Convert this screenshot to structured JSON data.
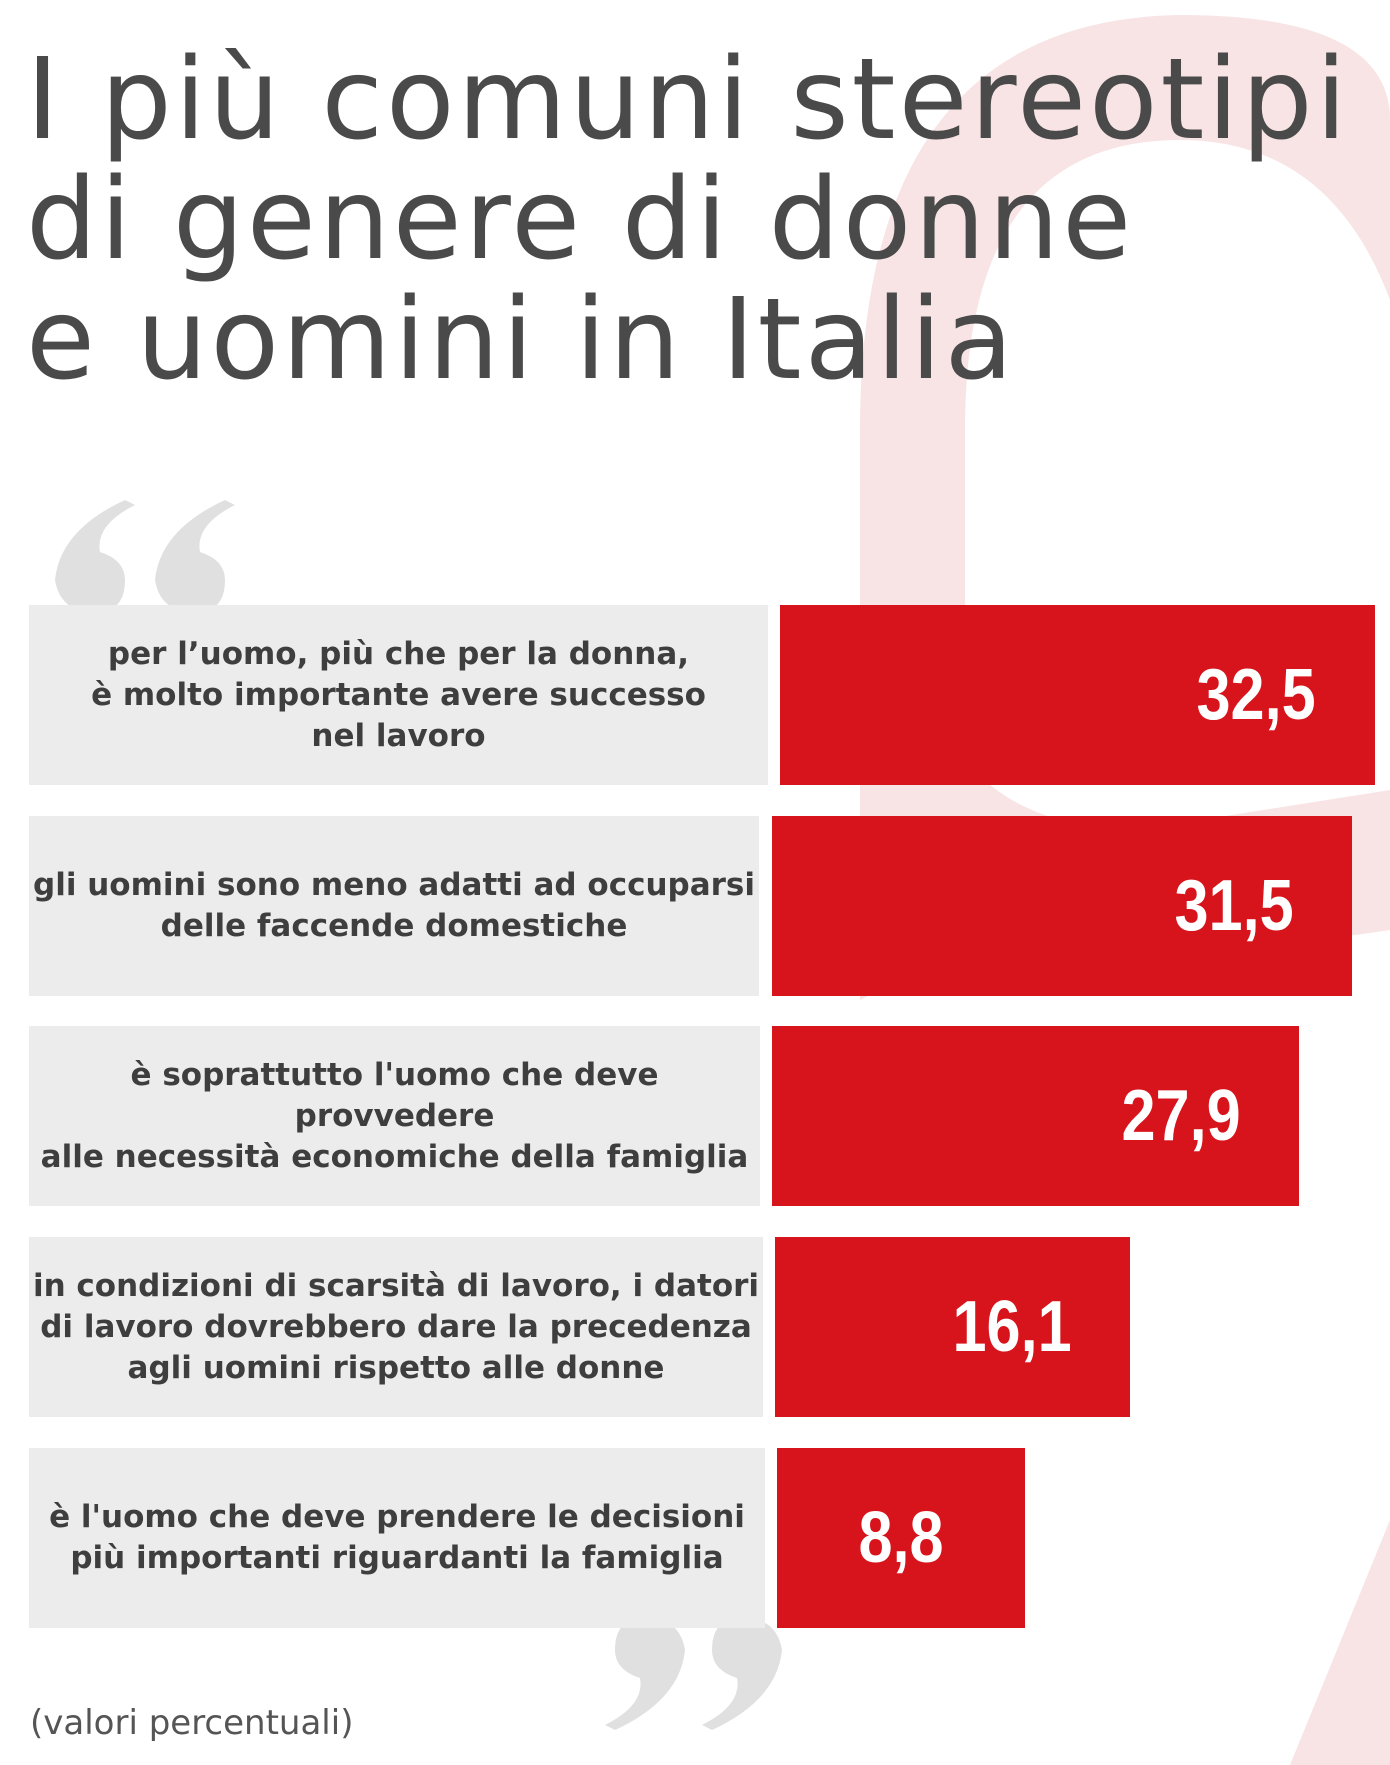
{
  "title": "I più comuni stereotipi\ndi genere di donne\ne uomini in Italia",
  "footnote": "(valori percentuali)",
  "colors": {
    "bar": "#d7131b",
    "label_bg": "#ececec",
    "background_shape": "#f8e4e5",
    "quote_marks": "#e0e0e0"
  },
  "chart_data": {
    "type": "bar",
    "orientation": "horizontal",
    "title": "I più comuni stereotipi di genere di donne e uomini in Italia",
    "unit_note": "(valori percentuali)",
    "categories": [
      "per l’uomo, più che per la donna,\nè molto importante avere successo\nnel lavoro",
      "gli uomini sono meno adatti ad occuparsi\ndelle faccende domestiche",
      "è soprattutto l'uomo che deve provvedere\nalle necessità economiche della famiglia",
      "in condizioni di scarsità di lavoro, i datori\ndi lavoro dovrebbero dare la precedenza\nagli uomini rispetto alle donne",
      "è l'uomo che deve prendere le decisioni\npiù importanti riguardanti la famiglia"
    ],
    "values": [
      32.5,
      31.5,
      27.9,
      16.1,
      8.8
    ],
    "value_labels": [
      "32,5",
      "31,5",
      "27,9",
      "16,1",
      "8,8"
    ]
  }
}
